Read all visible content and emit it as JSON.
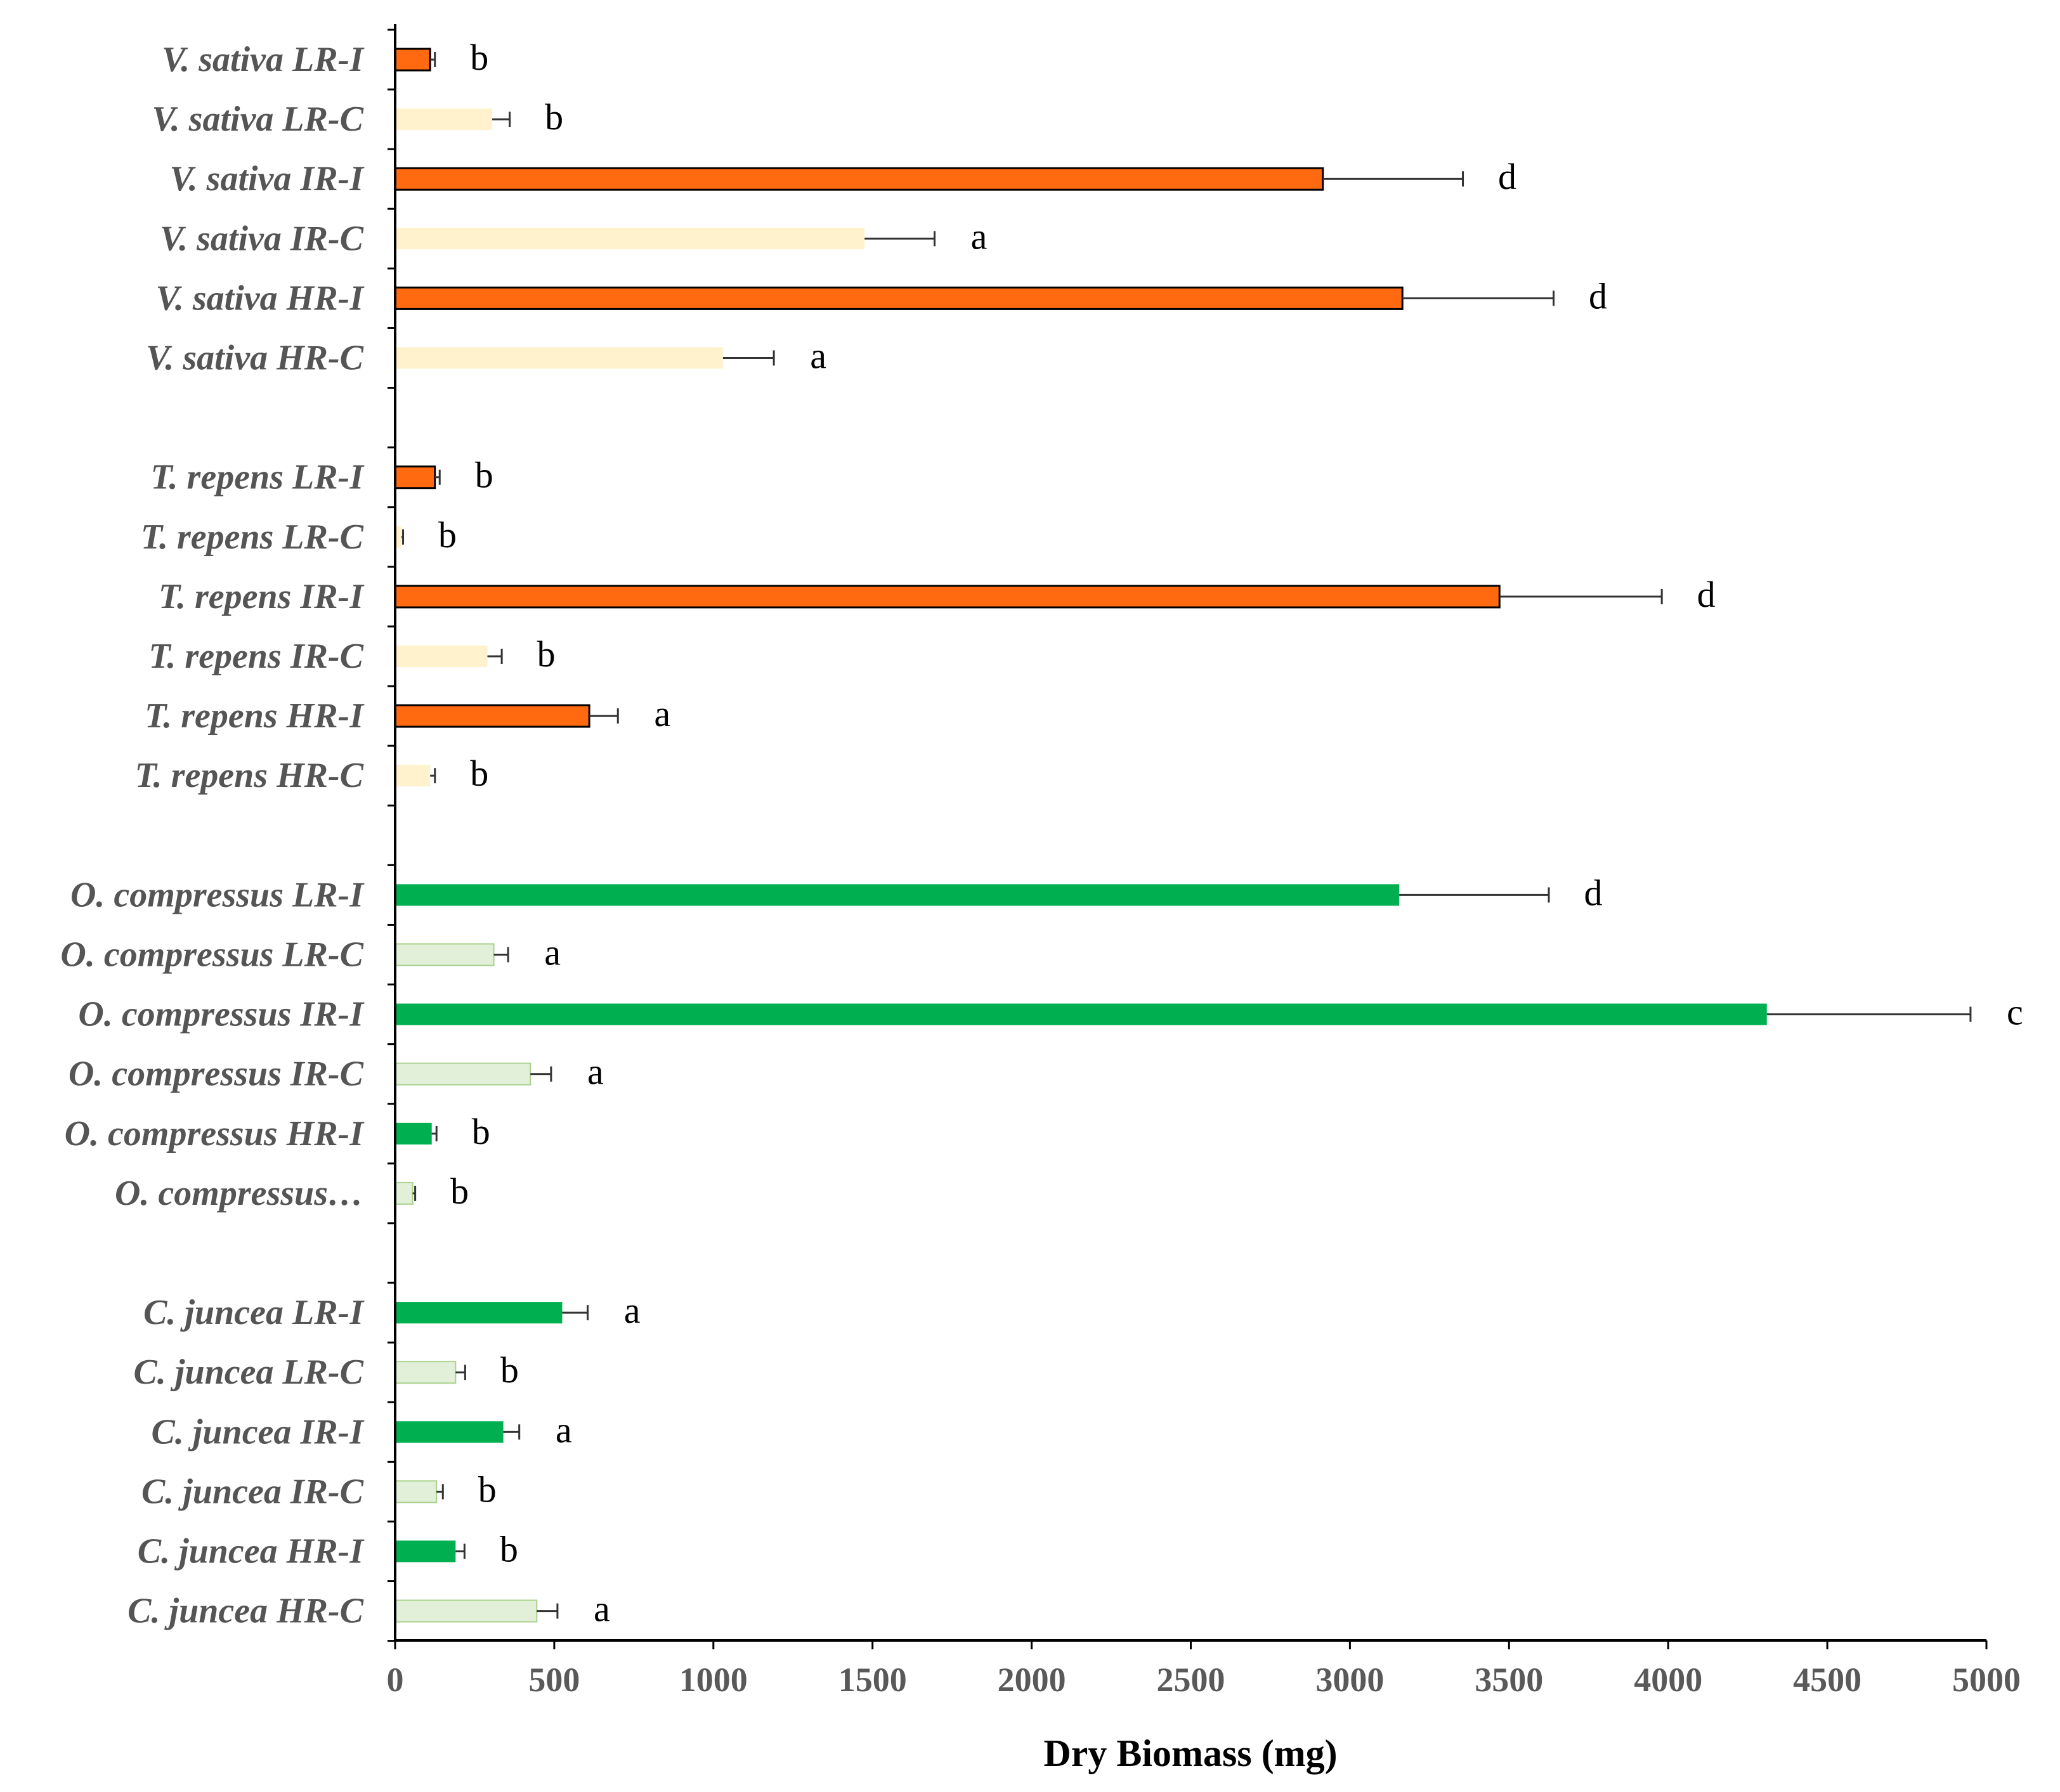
{
  "chart_data": {
    "type": "bar",
    "orientation": "horizontal",
    "xlabel": "Dry Biomass (mg)",
    "ylabel": "",
    "xlim": [
      0,
      5000
    ],
    "xticks": [
      0,
      500,
      1000,
      1500,
      2000,
      2500,
      3000,
      3500,
      4000,
      4500,
      5000
    ],
    "grid": false,
    "legend": "none",
    "colors": {
      "orange_treatment": "#FF6A10",
      "orange_control": "#FFF2CC",
      "green_treatment": "#00B050",
      "green_control": "#E2F0D9",
      "green_control_border": "#A9D18E",
      "error_bar": "#333333",
      "axis": "#000000"
    },
    "groups": [
      {
        "bars": [
          {
            "label": "V. sativa LR-I",
            "value": 110,
            "error": 15,
            "sig": "b",
            "style": "orange_treatment"
          },
          {
            "label": "V. sativa LR-C",
            "value": 305,
            "error": 55,
            "sig": "b",
            "style": "orange_control"
          },
          {
            "label": "V. sativa IR-I",
            "value": 2915,
            "error": 440,
            "sig": "d",
            "style": "orange_treatment"
          },
          {
            "label": "V. sativa IR-C",
            "value": 1475,
            "error": 220,
            "sig": "a",
            "style": "orange_control"
          },
          {
            "label": "V. sativa HR-I",
            "value": 3165,
            "error": 475,
            "sig": "d",
            "style": "orange_treatment"
          },
          {
            "label": "V. sativa HR-C",
            "value": 1030,
            "error": 160,
            "sig": "a",
            "style": "orange_control"
          }
        ]
      },
      {
        "bars": [
          {
            "label": "T. repens LR-I",
            "value": 125,
            "error": 15,
            "sig": "b",
            "style": "orange_treatment"
          },
          {
            "label": "T. repens LR-C",
            "value": 20,
            "error": 5,
            "sig": "b",
            "style": "orange_control"
          },
          {
            "label": "T. repens IR-I",
            "value": 3470,
            "error": 510,
            "sig": "d",
            "style": "orange_treatment"
          },
          {
            "label": "T. repens IR-C",
            "value": 290,
            "error": 45,
            "sig": "b",
            "style": "orange_control"
          },
          {
            "label": "T. repens HR-I",
            "value": 610,
            "error": 90,
            "sig": "a",
            "style": "orange_treatment"
          },
          {
            "label": "T. repens HR-C",
            "value": 110,
            "error": 15,
            "sig": "b",
            "style": "orange_control"
          }
        ]
      },
      {
        "bars": [
          {
            "label": "O. compressus LR-I",
            "value": 3155,
            "error": 470,
            "sig": "d",
            "style": "green_treatment"
          },
          {
            "label": "O. compressus LR-C",
            "value": 310,
            "error": 45,
            "sig": "a",
            "style": "green_control"
          },
          {
            "label": "O. compressus IR-I",
            "value": 4310,
            "error": 640,
            "sig": "c",
            "style": "green_treatment"
          },
          {
            "label": "O. compressus IR-C",
            "value": 425,
            "error": 65,
            "sig": "a",
            "style": "green_control"
          },
          {
            "label": "O. compressus HR-I",
            "value": 115,
            "error": 15,
            "sig": "b",
            "style": "green_treatment"
          },
          {
            "label": "O. compressus…",
            "value": 55,
            "error": 8,
            "sig": "b",
            "style": "green_control"
          }
        ]
      },
      {
        "bars": [
          {
            "label": "C. juncea LR-I",
            "value": 525,
            "error": 80,
            "sig": "a",
            "style": "green_treatment"
          },
          {
            "label": "C. juncea LR-C",
            "value": 190,
            "error": 30,
            "sig": "b",
            "style": "green_control"
          },
          {
            "label": "C. juncea IR-I",
            "value": 340,
            "error": 50,
            "sig": "a",
            "style": "green_treatment"
          },
          {
            "label": "C. juncea IR-C",
            "value": 130,
            "error": 20,
            "sig": "b",
            "style": "green_control"
          },
          {
            "label": "C. juncea HR-I",
            "value": 190,
            "error": 28,
            "sig": "b",
            "style": "green_treatment"
          },
          {
            "label": "C. juncea HR-C",
            "value": 445,
            "error": 65,
            "sig": "a",
            "style": "green_control"
          }
        ]
      }
    ]
  }
}
